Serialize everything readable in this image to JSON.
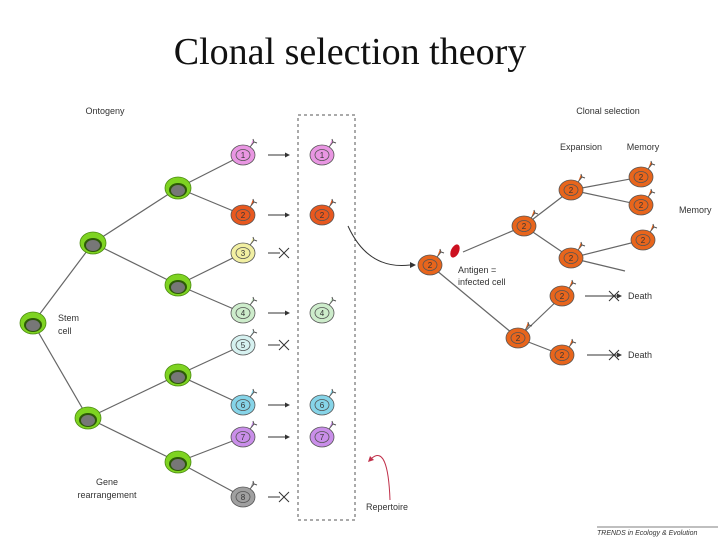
{
  "title": "Clonal selection theory",
  "labels": {
    "ontogeny": "Ontogeny",
    "clonal_selection": "Clonal selection",
    "expansion": "Expansion",
    "memory_header": "Memory",
    "memory_side": "Memory",
    "stem_line1": "Stem",
    "stem_line2": "cell",
    "gene_line1": "Gene",
    "gene_line2": "rearrangement",
    "antigen_line1": "Antigen =",
    "antigen_line2": "infected cell",
    "death": "Death",
    "repertoire": "Repertoire",
    "footer": "TRENDS in Ecology & Evolution"
  },
  "mature_cells": [
    {
      "label": "1",
      "color": "#e996e2",
      "selected": true
    },
    {
      "label": "2",
      "color": "#e8581f",
      "selected": true
    },
    {
      "label": "3",
      "color": "#f1efa2",
      "selected": false
    },
    {
      "label": "4",
      "color": "#cdeccb",
      "selected": true
    },
    {
      "label": "5",
      "color": "#d6f1f0",
      "selected": false
    },
    {
      "label": "6",
      "color": "#86d4e8",
      "selected": true
    },
    {
      "label": "7",
      "color": "#c98ee9",
      "selected": true
    },
    {
      "label": "8",
      "color": "#a0a0a0",
      "selected": false
    }
  ],
  "clone_label": "2",
  "colors": {
    "progenitor": "#7ed321",
    "nucleus": "#777777",
    "clone": "#e8651c",
    "antigen": "#cc1020",
    "repertoire_arrow": "#c0304a"
  }
}
